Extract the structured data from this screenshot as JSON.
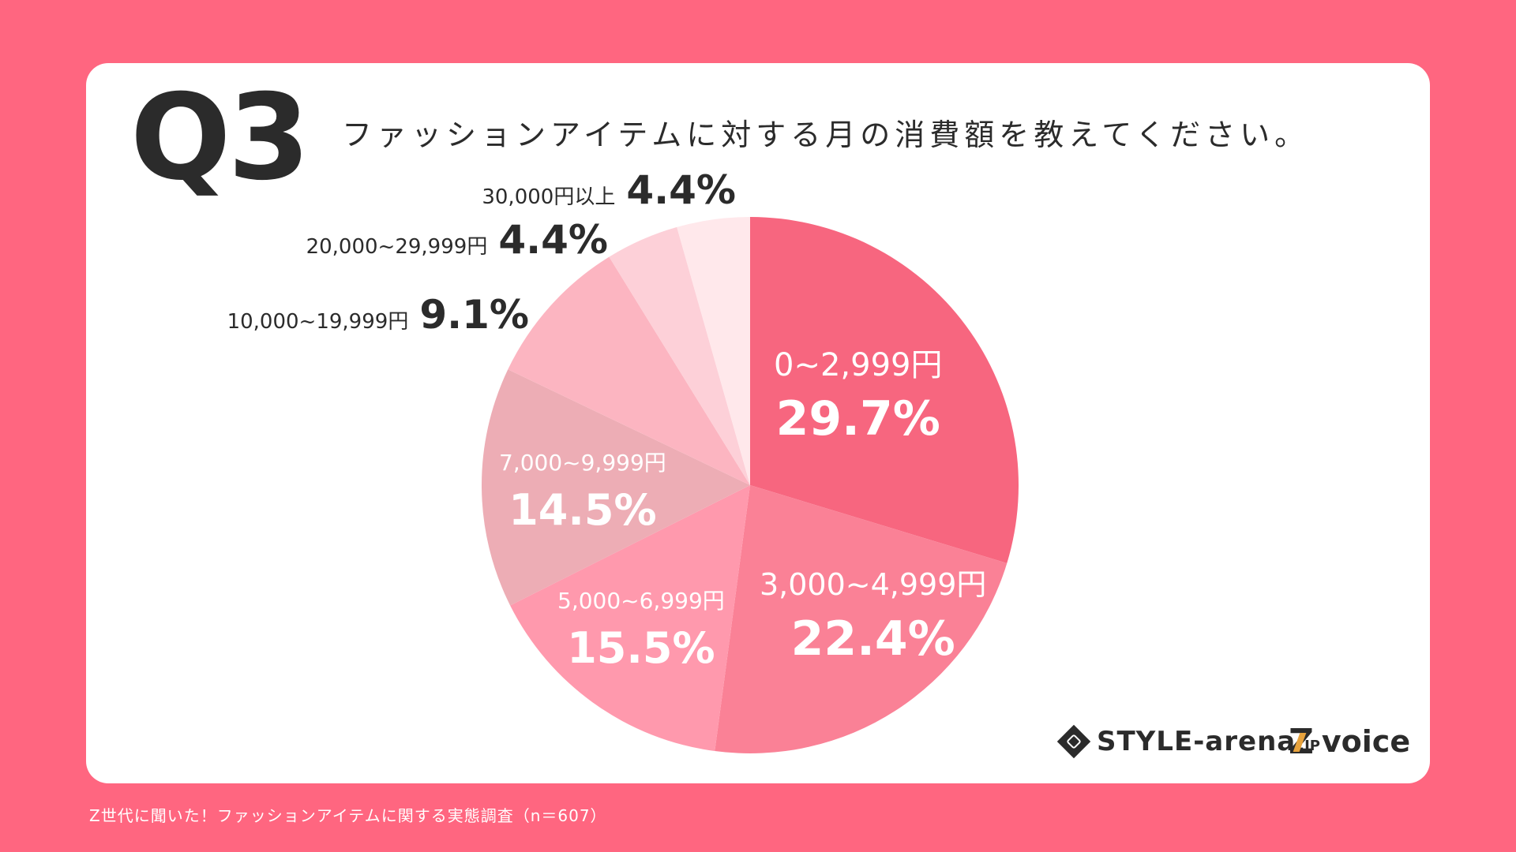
{
  "header": {
    "q_number": "Q3",
    "question": "ファッションアイテムに対する月の消費額を教えてください。"
  },
  "chart_data": {
    "type": "pie",
    "title": "ファッションアイテムに対する月の消費額を教えてください。",
    "categories": [
      "0~2,999円",
      "3,000~4,999円",
      "5,000~6,999円",
      "7,000~9,999円",
      "10,000~19,999円",
      "20,000~29,999円",
      "30,000円以上"
    ],
    "values": [
      29.7,
      22.4,
      15.5,
      14.5,
      9.1,
      4.4,
      4.4
    ],
    "value_labels": [
      "29.7%",
      "22.4%",
      "15.5%",
      "14.5%",
      "9.1%",
      "4.4%",
      "4.4%"
    ],
    "colors": [
      "#f7667f",
      "#fa8196",
      "#ff99ad",
      "#edadb5",
      "#fcb5c1",
      "#fdd0d8",
      "#ffe8eb"
    ],
    "unit": "%",
    "start": "12 o'clock",
    "direction": "clockwise"
  },
  "logos": {
    "style_arena": "STYLE-arena",
    "style_arena_suffix": ".JP",
    "zvoice": "voice",
    "zvoice_mark": "Z"
  },
  "footer": {
    "source": "Z世代に聞いた！ファッションアイテムに関する実態調査（n＝607）"
  }
}
